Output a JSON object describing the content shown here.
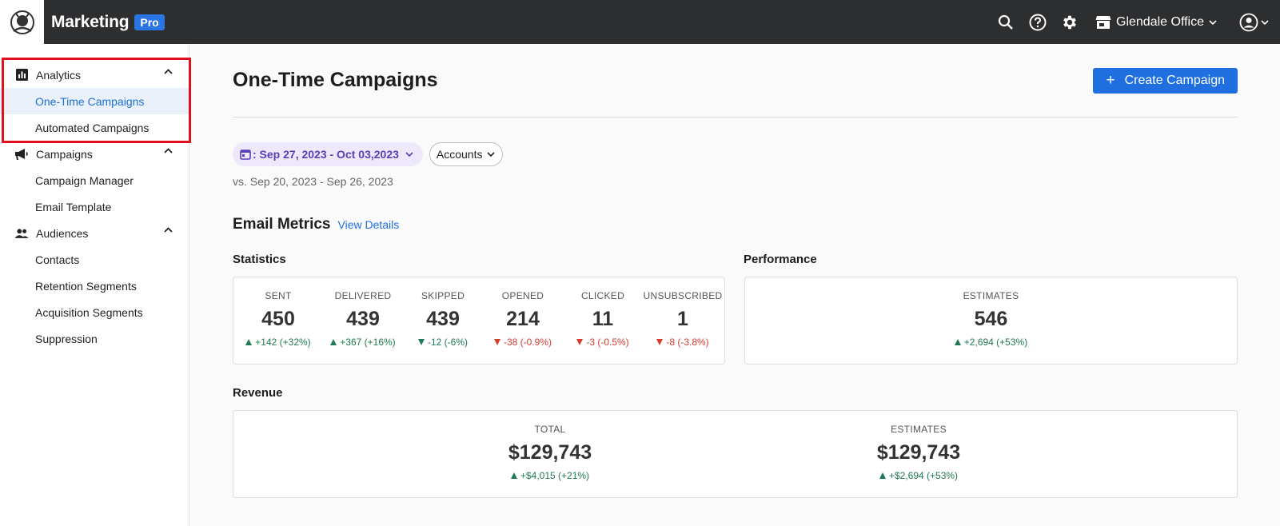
{
  "header": {
    "app_name": "Marketing",
    "badge": "Pro",
    "location": "Glendale Office"
  },
  "sidebar": {
    "groups": [
      {
        "label": "Analytics",
        "icon": "bar-chart-icon",
        "items": [
          "One-Time Campaigns",
          "Automated Campaigns"
        ],
        "expanded": true
      },
      {
        "label": "Campaigns",
        "icon": "megaphone-icon",
        "items": [
          "Campaign Manager",
          "Email Template"
        ],
        "expanded": true
      },
      {
        "label": "Audiences",
        "icon": "people-icon",
        "items": [
          "Contacts",
          "Retention Segments",
          "Acquisition Segments",
          "Suppression"
        ],
        "expanded": true
      }
    ],
    "active_item": "One-Time Campaigns"
  },
  "main": {
    "title": "One-Time Campaigns",
    "create_button": "Create Campaign",
    "date_range": ": Sep 27, 2023 - Oct 03,2023",
    "accounts_filter": "Accounts",
    "comparison": "vs. Sep 20, 2023 - Sep 26, 2023",
    "email_metrics": {
      "title": "Email Metrics",
      "view_details": "View Details",
      "statistics_title": "Statistics",
      "performance_title": "Performance",
      "statistics": [
        {
          "label": "SENT",
          "value": "450",
          "delta": "+142 (+32%)",
          "trend": "up"
        },
        {
          "label": "DELIVERED",
          "value": "439",
          "delta": "+367 (+16%)",
          "trend": "up"
        },
        {
          "label": "SKIPPED",
          "value": "439",
          "delta": "-12 (-6%)",
          "trend": "down-good"
        },
        {
          "label": "OPENED",
          "value": "214",
          "delta": "-38 (-0.9%)",
          "trend": "down"
        },
        {
          "label": "CLICKED",
          "value": "11",
          "delta": "-3 (-0.5%)",
          "trend": "down"
        },
        {
          "label": "UNSUBSCRIBED",
          "value": "1",
          "delta": "-8 (-3.8%)",
          "trend": "down"
        }
      ],
      "performance": {
        "label": "ESTIMATES",
        "value": "546",
        "delta": "+2,694 (+53%)",
        "trend": "up"
      }
    },
    "revenue": {
      "title": "Revenue",
      "total": {
        "label": "TOTAL",
        "value": "$129,743",
        "delta": "+$4,015 (+21%)",
        "trend": "up"
      },
      "estimates": {
        "label": "ESTIMATES",
        "value": "$129,743",
        "delta": "+$2,694 (+53%)",
        "trend": "up"
      }
    }
  },
  "colors": {
    "topbar": "#2d2e30",
    "accent": "#1f6fe0",
    "positive": "#1e7a52",
    "negative": "#d63b2b",
    "highlight": "#e0101d"
  }
}
